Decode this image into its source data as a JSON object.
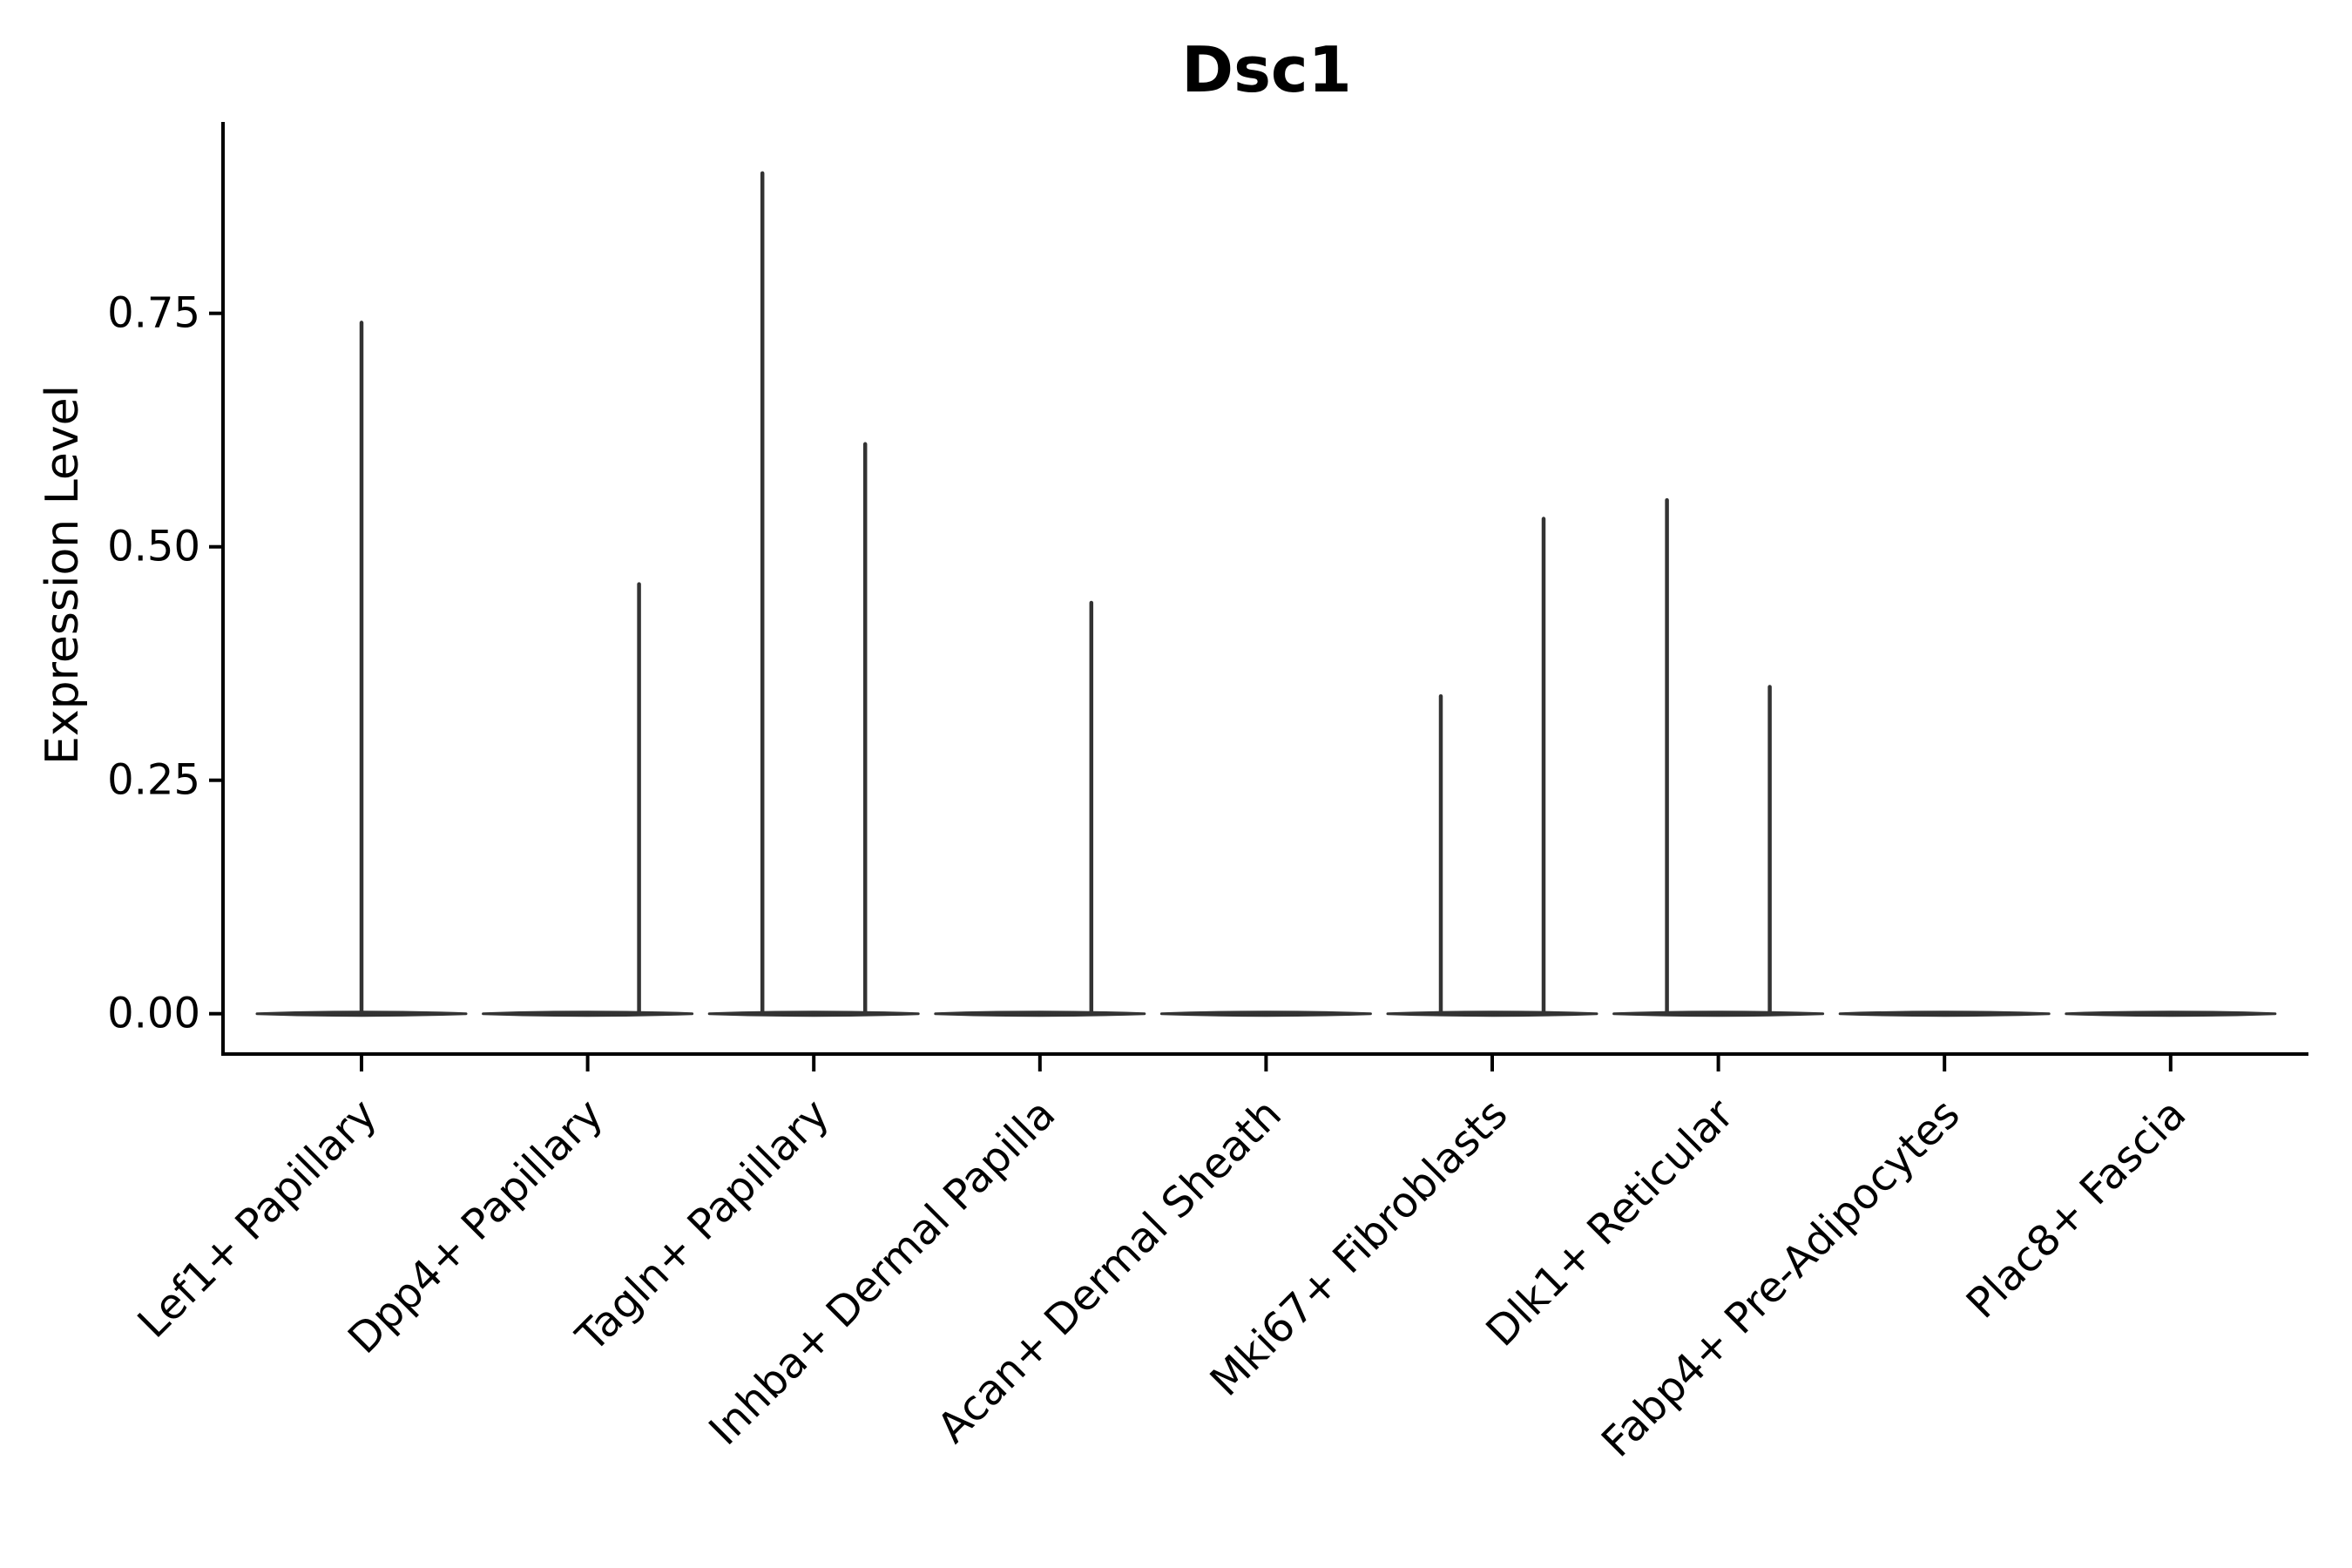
{
  "page": {
    "background": "#ffffff"
  },
  "chart_data": {
    "type": "violin",
    "title": "Dsc1",
    "ylabel": "Expression Level",
    "xlabel": "",
    "grid": false,
    "legend_position": "none",
    "ylim": [
      -0.045,
      0.95
    ],
    "yticks": [
      {
        "label": "0.00",
        "value": 0.0
      },
      {
        "label": "0.25",
        "value": 0.25
      },
      {
        "label": "0.50",
        "value": 0.5
      },
      {
        "label": "0.75",
        "value": 0.75
      }
    ],
    "categories": [
      "Lef1+ Papillary",
      "Dpp4+ Papillary",
      "Tagln+ Papillary",
      "Inhba+ Dermal Papilla",
      "Acan+ Dermal Sheath",
      "Mki67+ Fibroblasts",
      "Dlk1+ Reticular",
      "Fabp4+ Pre-Adipocytes",
      "Plac8+ Fascia"
    ],
    "violins": [
      {
        "category": "Lef1+ Papillary",
        "baseline": 0.0,
        "spikes": [
          {
            "position": "center",
            "max": 0.74
          }
        ]
      },
      {
        "category": "Dpp4+ Papillary",
        "baseline": 0.0,
        "spikes": [
          {
            "position": "right",
            "max": 0.46
          }
        ]
      },
      {
        "category": "Tagln+ Papillary",
        "baseline": 0.0,
        "spikes": [
          {
            "position": "left",
            "max": 0.9
          },
          {
            "position": "right",
            "max": 0.61
          }
        ]
      },
      {
        "category": "Inhba+ Dermal Papilla",
        "baseline": 0.0,
        "spikes": [
          {
            "position": "right",
            "max": 0.44
          }
        ]
      },
      {
        "category": "Acan+ Dermal Sheath",
        "baseline": 0.0,
        "spikes": []
      },
      {
        "category": "Mki67+ Fibroblasts",
        "baseline": 0.0,
        "spikes": [
          {
            "position": "left",
            "max": 0.34
          },
          {
            "position": "right",
            "max": 0.53
          }
        ]
      },
      {
        "category": "Dlk1+ Reticular",
        "baseline": 0.0,
        "spikes": [
          {
            "position": "left",
            "max": 0.55
          },
          {
            "position": "right",
            "max": 0.35
          }
        ]
      },
      {
        "category": "Fabp4+ Pre-Adipocytes",
        "baseline": 0.0,
        "spikes": []
      },
      {
        "category": "Plac8+ Fascia",
        "baseline": 0.0,
        "spikes": []
      }
    ],
    "colors": {
      "violin_line": "#333333",
      "axis": "#000000",
      "text": "#000000",
      "background": "#ffffff"
    }
  }
}
